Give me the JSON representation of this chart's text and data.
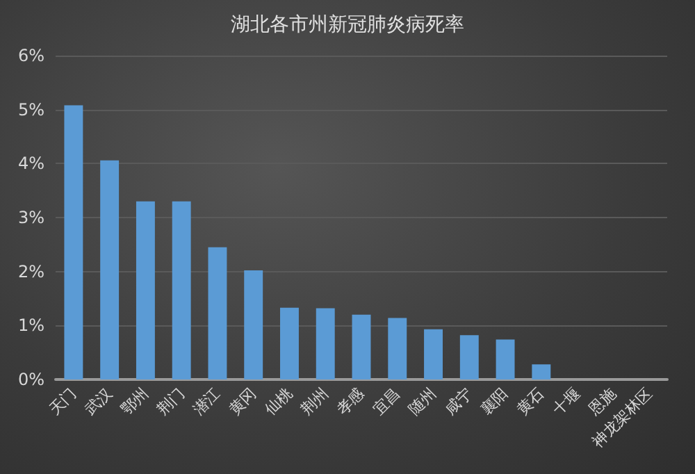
{
  "chart_data": {
    "type": "bar",
    "title": "湖北各市州新冠肺炎病死率",
    "categories": [
      "天门",
      "武汉",
      "鄂州",
      "荆门",
      "潜江",
      "黄冈",
      "仙桃",
      "荆州",
      "孝感",
      "宜昌",
      "随州",
      "咸宁",
      "襄阳",
      "黄石",
      "十堰",
      "恩施",
      "神龙架林区"
    ],
    "values": [
      5.08,
      4.06,
      3.3,
      3.3,
      2.45,
      2.02,
      1.33,
      1.32,
      1.2,
      1.14,
      0.93,
      0.82,
      0.74,
      0.28,
      0,
      0,
      0
    ],
    "color": "#5b9bd5",
    "ylim": [
      0,
      6
    ],
    "yticks": [
      {
        "value": 0,
        "label": "0%"
      },
      {
        "value": 1,
        "label": "1%"
      },
      {
        "value": 2,
        "label": "2%"
      },
      {
        "value": 3,
        "label": "3%"
      },
      {
        "value": 4,
        "label": "4%"
      },
      {
        "value": 5,
        "label": "5%"
      },
      {
        "value": 6,
        "label": "6%"
      }
    ],
    "grid": "y"
  }
}
